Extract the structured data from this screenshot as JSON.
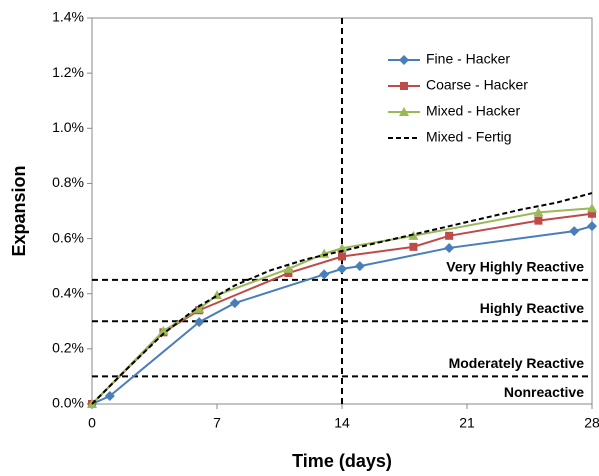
{
  "chart_data": {
    "type": "line",
    "x_label": "Time (days)",
    "y_label": "Expansion",
    "xlim": [
      0,
      28
    ],
    "xticks": [
      0,
      7,
      14,
      21,
      28
    ],
    "ylim": [
      0,
      1.4
    ],
    "yticks": [
      {
        "value": 0,
        "label": "0.0%"
      },
      {
        "value": 0.2,
        "label": "0.2%"
      },
      {
        "value": 0.4,
        "label": "0.4%"
      },
      {
        "value": 0.6,
        "label": "0.6%"
      },
      {
        "value": 0.8,
        "label": "0.8%"
      },
      {
        "value": 1.0,
        "label": "1.0%"
      },
      {
        "value": 1.2,
        "label": "1.2%"
      },
      {
        "value": 1.4,
        "label": "1.4%"
      }
    ],
    "grid": false,
    "legend": "top-right",
    "series": [
      {
        "name": "Fine - Hacker",
        "color": "#4a7ebb",
        "marker": "diamond",
        "x": [
          0,
          1,
          6,
          8,
          13,
          14,
          15,
          20,
          27,
          28
        ],
        "values": [
          0,
          0.029,
          0.297,
          0.366,
          0.47,
          0.49,
          0.5,
          0.566,
          0.627,
          0.645
        ]
      },
      {
        "name": "Coarse - Hacker",
        "color": "#be4b48",
        "marker": "square",
        "x": [
          0,
          4,
          6,
          11,
          14,
          18,
          20,
          25,
          28
        ],
        "values": [
          0,
          0.26,
          0.34,
          0.475,
          0.535,
          0.57,
          0.61,
          0.665,
          0.69
        ]
      },
      {
        "name": "Mixed - Hacker",
        "color": "#98b954",
        "marker": "triangle",
        "x": [
          0,
          4,
          6,
          7,
          11,
          13,
          14,
          18,
          25,
          28
        ],
        "values": [
          0,
          0.265,
          0.345,
          0.395,
          0.49,
          0.545,
          0.565,
          0.61,
          0.695,
          0.71
        ]
      },
      {
        "name": "Mixed - Fertig",
        "color": "#000000",
        "marker": "none",
        "dash": true,
        "x": [
          0,
          2,
          4,
          6,
          8,
          10,
          12,
          14,
          16,
          18,
          20,
          22,
          24,
          26,
          28
        ],
        "values": [
          0,
          0.13,
          0.255,
          0.355,
          0.43,
          0.485,
          0.525,
          0.555,
          0.585,
          0.615,
          0.645,
          0.675,
          0.705,
          0.73,
          0.765
        ]
      }
    ],
    "horizontal_lines": [
      0.45,
      0.3,
      0.1
    ],
    "zone_labels": [
      "Very Highly Reactive",
      "Highly Reactive",
      "Moderately Reactive",
      "Nonreactive"
    ],
    "vertical_line": 14
  }
}
